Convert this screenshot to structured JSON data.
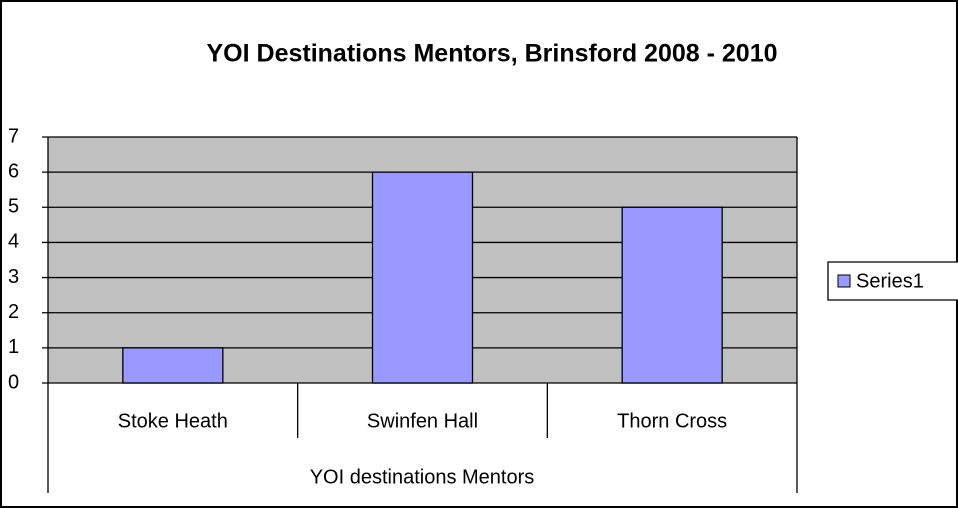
{
  "chart_data": {
    "type": "bar",
    "title": "YOI Destinations Mentors, Brinsford 2008 - 2010",
    "x_label": "YOI destinations Mentors",
    "categories": [
      "Stoke Heath",
      "Swinfen Hall",
      "Thorn Cross"
    ],
    "series": [
      {
        "name": "Series1",
        "color": "#9999ff",
        "values": [
          1,
          6,
          5
        ]
      }
    ],
    "ylim": [
      0,
      7
    ],
    "yticks": [
      0,
      1,
      2,
      3,
      4,
      5,
      6,
      7
    ],
    "grid": true,
    "plot_background": "#c0c0c0",
    "legend": "right"
  }
}
